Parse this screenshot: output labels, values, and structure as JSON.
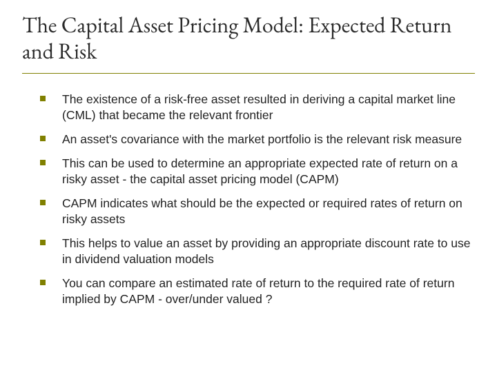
{
  "slide": {
    "title": "The Capital Asset Pricing Model: Expected Return and Risk",
    "title_color": "#2a2a2a",
    "title_fontsize": 32,
    "title_font": "Garamond",
    "divider_color": "#808000",
    "bullet_color": "#808000",
    "body_fontsize": 17.5,
    "body_font": "Arial",
    "body_color": "#222222",
    "background_color": "#ffffff",
    "bullets": [
      "The existence of a risk-free asset resulted in deriving a capital market line (CML) that became the relevant frontier",
      "An asset's covariance with the market portfolio is the relevant risk measure",
      "This can be used to determine an appropriate expected rate of return on a risky asset - the capital asset pricing model (CAPM)",
      "CAPM indicates what should be the expected or required rates of return on risky assets",
      "This helps to value an asset by providing an appropriate discount rate to use in dividend valuation models",
      "You can compare an estimated rate of return to the required rate of return implied by CAPM - over/under valued ?"
    ]
  }
}
